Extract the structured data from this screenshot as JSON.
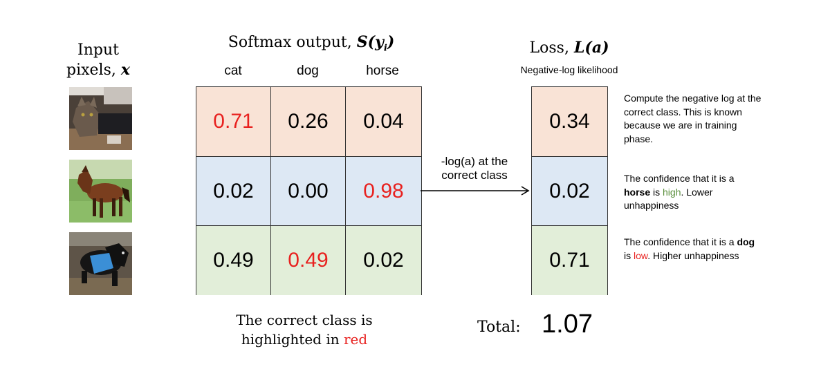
{
  "input": {
    "title_line1": "Input",
    "title_line2_text": "pixels, ",
    "title_line2_var": "x"
  },
  "images": [
    {
      "label": "cat-image-icon"
    },
    {
      "label": "horse-image-icon"
    },
    {
      "label": "dog-image-icon"
    }
  ],
  "softmax": {
    "title_text": "Softmax output, ",
    "title_var": "S(y",
    "title_sub": "i",
    "title_close": ")"
  },
  "columns": [
    "cat",
    "dog",
    "horse"
  ],
  "rows": [
    {
      "values": [
        "0.71",
        "0.26",
        "0.04"
      ],
      "correct_index": 0,
      "color": "#f9e3d6"
    },
    {
      "values": [
        "0.02",
        "0.00",
        "0.98"
      ],
      "correct_index": 2,
      "color": "#dde8f4"
    },
    {
      "values": [
        "0.49",
        "0.49",
        "0.02"
      ],
      "correct_index": 1,
      "color": "#e2eed9"
    }
  ],
  "arrow": {
    "line1": "-log(a) at the",
    "line2": "correct class"
  },
  "loss": {
    "title_text": "Loss, ",
    "title_var": "L(a)",
    "subtitle": "Negative-log likelihood",
    "values": [
      "0.34",
      "0.02",
      "0.71"
    ]
  },
  "notes": [
    {
      "text": "Compute the negative log at the correct class. This is known because we are in training phase."
    },
    {
      "pre": "The confidence that it is a ",
      "bold": "horse",
      "mid": " is ",
      "colored": "high",
      "color": "#5a8f3c",
      "post": ". Lower unhappiness"
    },
    {
      "pre": "The confidence that it is a ",
      "bold": "dog",
      "mid": " is ",
      "colored": "low",
      "color": "#e8211f",
      "post": ". Higher unhappiness"
    }
  ],
  "caption": {
    "line1": "The correct class is",
    "line2_pre": "highlighted in ",
    "line2_red": "red"
  },
  "total": {
    "label": "Total:",
    "value": "1.07"
  },
  "colors": {
    "highlight": "#e8211f",
    "line": "#333333"
  }
}
